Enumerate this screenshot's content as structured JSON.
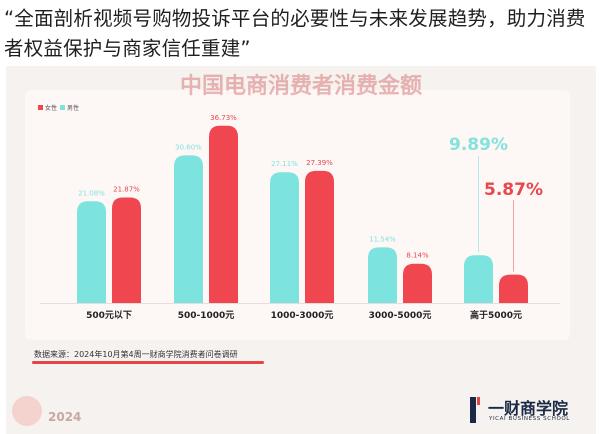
{
  "headline": "“全面剖析视频号购物投诉平台的必要性与未来发展趋势，助力消费者权益保护与商家信任重建”",
  "poster": {
    "title": "中国电商消费者消费金额",
    "source": "数据来源：2024年10月第4周一财商学院消费者问卷调研",
    "year": "2024",
    "brand_name": "一财商学院",
    "brand_sub": "YICAI BUSINESS SCHOOL"
  },
  "colors": {
    "female": "#f0464f",
    "male": "#7ce3de",
    "female_label": "#e8474d",
    "male_label": "#86e2dd"
  },
  "chart_data": {
    "type": "bar",
    "categories": [
      "500元以下",
      "500-1000元",
      "1000-3000元",
      "3000-5000元",
      "高于5000元"
    ],
    "series": [
      {
        "name": "女性",
        "values": [
          21.87,
          36.73,
          27.39,
          8.14,
          5.87
        ]
      },
      {
        "name": "男性",
        "values": [
          21.08,
          30.6,
          27.11,
          11.54,
          9.89
        ]
      }
    ],
    "value_labels": {
      "女性": [
        "21.87%",
        "36.73%",
        "27.39%",
        "8.14%",
        "5.87%"
      ],
      "男性": [
        "21.08%",
        "30.60%",
        "27.11%",
        "11.54%",
        "9.89%"
      ]
    },
    "legend_position": "top-left",
    "ylim": [
      0,
      40
    ],
    "grid": false
  }
}
